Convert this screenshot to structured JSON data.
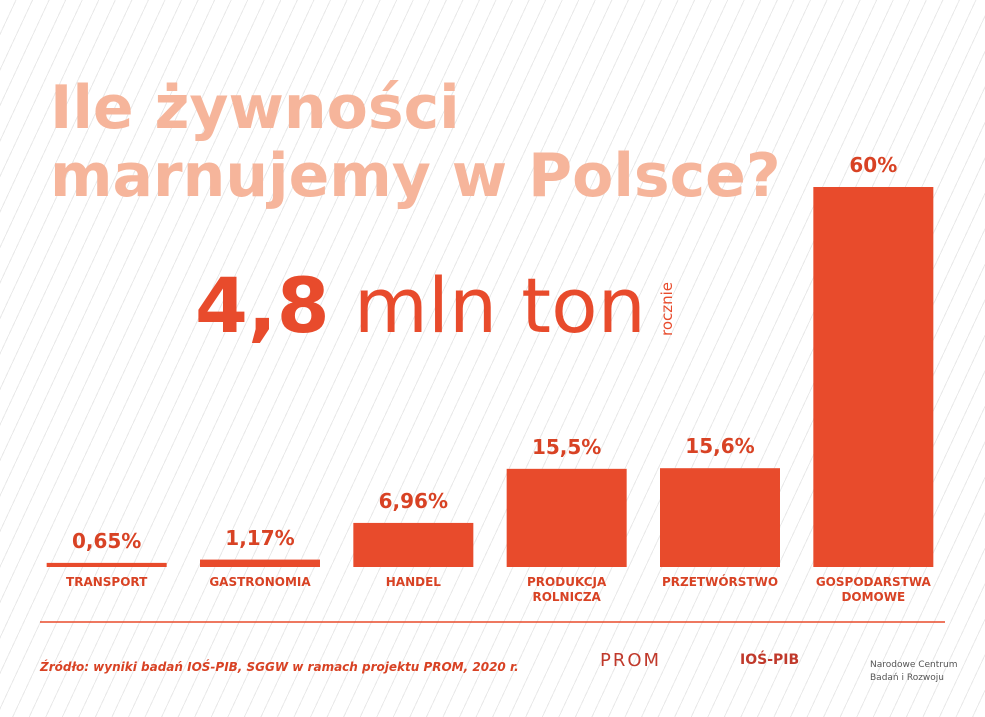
{
  "chart_data": {
    "type": "bar",
    "title_lines": [
      "Ile żywności",
      "marnujemy w Polsce?"
    ],
    "headline": {
      "number": "4,8",
      "unit": "mln ton",
      "period": "rocznie"
    },
    "categories": [
      "TRANSPORT",
      "GASTRONOMIA",
      "HANDEL",
      "PRODUKCJA ROLNICZA",
      "PRZETWÓRSTWO",
      "GOSPODARSTWA DOMOWE"
    ],
    "values": [
      0.65,
      1.17,
      6.96,
      15.5,
      15.6,
      60
    ],
    "value_labels": [
      "0,65%",
      "1,17%",
      "6,96%",
      "15,5%",
      "15,6%",
      "60%"
    ],
    "color": "#e84b2c",
    "ylim": [
      0,
      60
    ],
    "source": "Źródło: wyniki badań IOŚ-PIB, SGGW w ramach projektu PROM, 2020 r.",
    "logos": [
      "PROM",
      "IOŚ-PIB",
      "Narodowe Centrum",
      "Badań i Rozwoju"
    ]
  }
}
